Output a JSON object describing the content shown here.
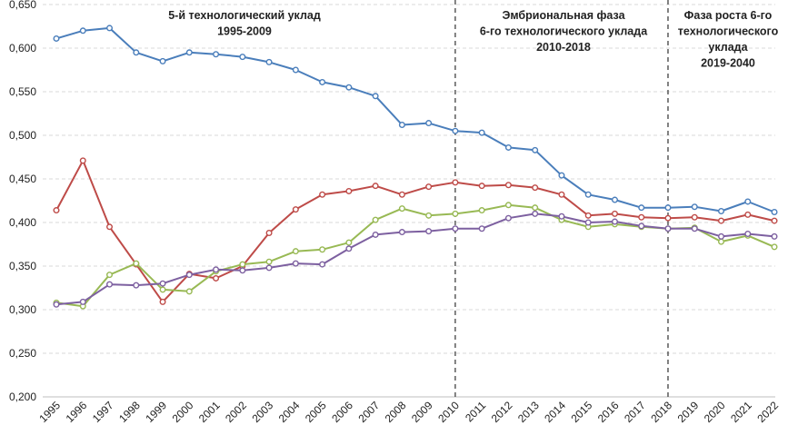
{
  "chart_data": {
    "type": "line",
    "x": [
      "1995",
      "1996",
      "1997",
      "1998",
      "1999",
      "2000",
      "2001",
      "2002",
      "2003",
      "2004",
      "2005",
      "2006",
      "2007",
      "2008",
      "2009",
      "2010",
      "2011",
      "2012",
      "2013",
      "2014",
      "2015",
      "2016",
      "2017",
      "2018",
      "2019",
      "2020",
      "2021",
      "2022"
    ],
    "ylim": [
      0.2,
      0.65
    ],
    "yticks": [
      "0,200",
      "0,250",
      "0,300",
      "0,350",
      "0,400",
      "0,450",
      "0,500",
      "0,550",
      "0,600",
      "0,650"
    ],
    "grid": true,
    "series": [
      {
        "name": "series-blue",
        "color": "#4a7ebb",
        "values": [
          0.611,
          0.62,
          0.623,
          0.595,
          0.585,
          0.595,
          0.593,
          0.59,
          0.584,
          0.575,
          0.561,
          0.555,
          0.545,
          0.512,
          0.514,
          0.505,
          0.503,
          0.486,
          0.483,
          0.454,
          0.432,
          0.426,
          0.417,
          0.417,
          0.418,
          0.413,
          0.424,
          0.412
        ]
      },
      {
        "name": "series-red",
        "color": "#be4b48",
        "values": [
          0.414,
          0.471,
          0.395,
          0.352,
          0.309,
          0.341,
          0.336,
          0.35,
          0.388,
          0.415,
          0.432,
          0.436,
          0.442,
          0.432,
          0.441,
          0.446,
          0.442,
          0.443,
          0.44,
          0.432,
          0.408,
          0.41,
          0.406,
          0.405,
          0.406,
          0.402,
          0.409,
          0.402
        ]
      },
      {
        "name": "series-green",
        "color": "#98b954",
        "values": [
          0.308,
          0.304,
          0.34,
          0.353,
          0.323,
          0.321,
          0.344,
          0.352,
          0.355,
          0.367,
          0.369,
          0.377,
          0.403,
          0.416,
          0.408,
          0.41,
          0.414,
          0.42,
          0.417,
          0.403,
          0.395,
          0.398,
          0.395,
          0.393,
          0.394,
          0.378,
          0.385,
          0.372
        ]
      },
      {
        "name": "series-purple",
        "color": "#7d60a0",
        "values": [
          0.306,
          0.309,
          0.329,
          0.328,
          0.33,
          0.34,
          0.346,
          0.345,
          0.348,
          0.353,
          0.352,
          0.37,
          0.386,
          0.389,
          0.39,
          0.393,
          0.393,
          0.405,
          0.41,
          0.407,
          0.4,
          0.401,
          0.396,
          0.393,
          0.393,
          0.384,
          0.387,
          0.384
        ]
      }
    ],
    "dividers": [
      "2010",
      "2018"
    ],
    "annotations": [
      {
        "lines": [
          "5-й технологический уклад",
          "1995-2009"
        ]
      },
      {
        "lines": [
          "Эмбриональная фаза",
          "6-го технологического уклада",
          "2010-2018"
        ]
      },
      {
        "lines": [
          "Фаза роста 6-го",
          "технологического",
          "уклада",
          "2019-2040"
        ]
      }
    ]
  }
}
